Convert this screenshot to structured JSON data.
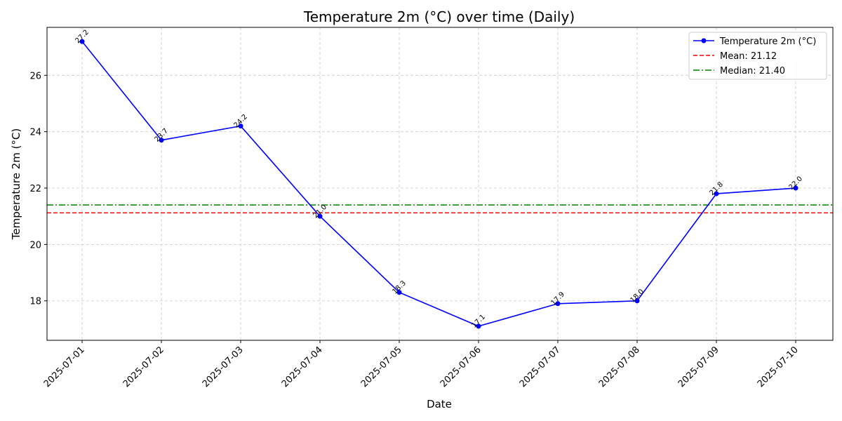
{
  "chart_data": {
    "type": "line",
    "title": "Temperature 2m (°C) over time (Daily)",
    "xlabel": "Date",
    "ylabel": "Temperature 2m (°C)",
    "ylim": [
      16.6,
      27.7
    ],
    "yticks": [
      18,
      20,
      22,
      24,
      26
    ],
    "grid": true,
    "legend_position": "top-right",
    "x": [
      "2025-07-01",
      "2025-07-02",
      "2025-07-03",
      "2025-07-04",
      "2025-07-05",
      "2025-07-06",
      "2025-07-07",
      "2025-07-08",
      "2025-07-09",
      "2025-07-10"
    ],
    "series": [
      {
        "name": "Temperature 2m (°C)",
        "color": "#0000ff",
        "values": [
          27.2,
          23.7,
          24.2,
          21.0,
          18.3,
          17.1,
          17.9,
          18.0,
          21.8,
          22.0
        ],
        "labels": [
          "27.2",
          "23.7",
          "24.2",
          "21.0",
          "18.3",
          "17.1",
          "17.9",
          "18.0",
          "21.8",
          "22.0"
        ]
      }
    ],
    "reference_lines": [
      {
        "name": "Mean: 21.12",
        "value": 21.12,
        "color": "#ff0000",
        "style": "dashed"
      },
      {
        "name": "Median: 21.40",
        "value": 21.4,
        "color": "#008000",
        "style": "dashdot"
      }
    ]
  }
}
